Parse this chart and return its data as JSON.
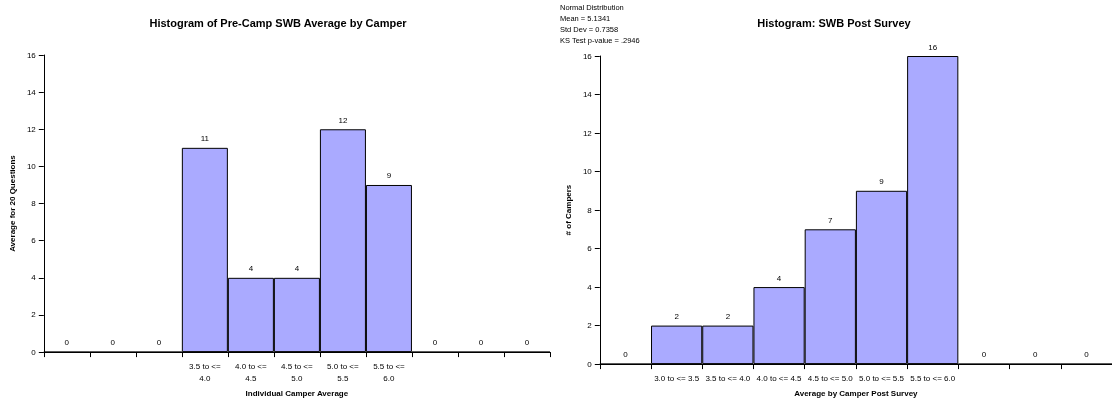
{
  "chart_data": [
    {
      "type": "bar",
      "title": "Histogram of Pre-Camp SWB Average by Camper",
      "xlabel": "Individual Camper Average",
      "ylabel": "Average for 20 Questions",
      "categories": [
        null,
        null,
        null,
        "3.5 to <= 4.0",
        "4.0 to <= 4.5",
        "4.5 to <= 5.0",
        "5.0 to <= 5.5",
        "5.5 to <= 6.0",
        null,
        null,
        null
      ],
      "values": [
        0,
        0,
        0,
        11,
        4,
        4,
        12,
        9,
        0,
        0,
        0
      ],
      "color": "#aaaaff",
      "ylim": [
        0,
        16
      ],
      "yticks": [
        0,
        2,
        4,
        6,
        8,
        10,
        12,
        14,
        16
      ],
      "grid": false,
      "data_labels": true
    },
    {
      "type": "bar",
      "title": "Histogram: SWB Post Survey",
      "xlabel": "Average by Camper Post Survey",
      "ylabel": "# of Campers",
      "annotations": [
        "Normal Distribution",
        "Mean = 5.1341",
        "Std Dev = 0.7358",
        "KS Test p-value = .2946"
      ],
      "categories": [
        null,
        "3.0 to <= 3.5",
        "3.5 to <= 4.0",
        "4.0 to <= 4.5",
        "4.5 to <= 5.0",
        "5.0 to <= 5.5",
        "5.5 to <= 6.0",
        null,
        null,
        null
      ],
      "values": [
        0,
        2,
        2,
        4,
        7,
        9,
        16,
        0,
        0,
        0
      ],
      "color": "#aaaaff",
      "ylim": [
        0,
        16
      ],
      "yticks": [
        0,
        2,
        4,
        6,
        8,
        10,
        12,
        14,
        16
      ],
      "grid": false,
      "data_labels": true
    }
  ]
}
